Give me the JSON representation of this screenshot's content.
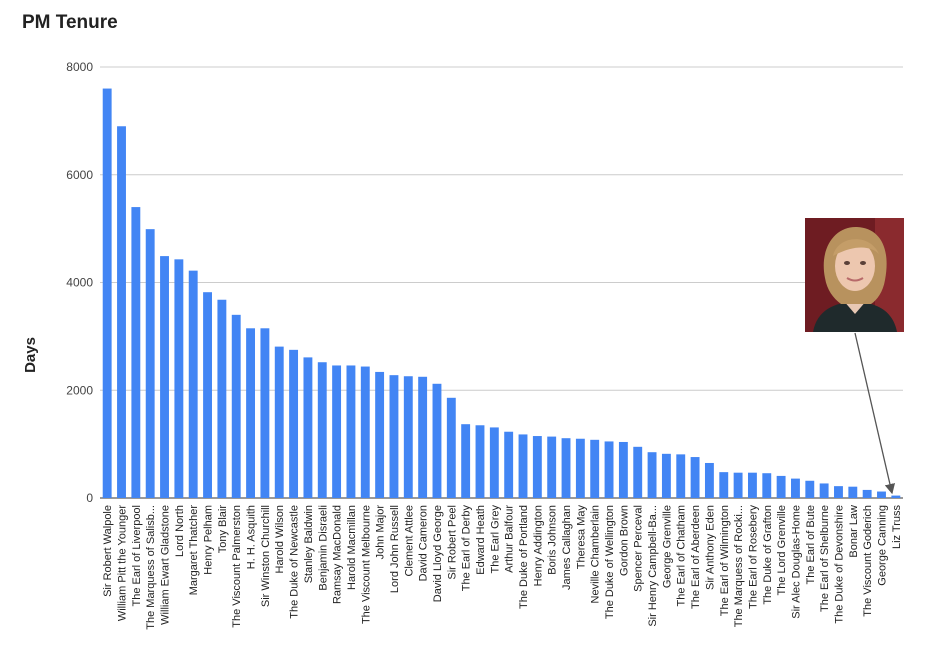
{
  "chart_data": {
    "type": "bar",
    "title": "PM Tenure",
    "xlabel": "",
    "ylabel": "Days",
    "ylim": [
      0,
      8000
    ],
    "yticks": [
      0,
      2000,
      4000,
      6000,
      8000
    ],
    "grid": true,
    "legend": "none",
    "bar_color": "#4285f4",
    "categories": [
      "Sir Robert Walpole",
      "William Pitt the Younger",
      "The Earl of Liverpool",
      "The Marquess of Salisb...",
      "William Ewart Gladstone",
      "Lord North",
      "Margaret Thatcher",
      "Henry Pelham",
      "Tony Blair",
      "The Viscount Palmerston",
      "H. H. Asquith",
      "Sir Winston Churchill",
      "Harold Wilson",
      "The Duke of Newcastle",
      "Stanley Baldwin",
      "Benjamin Disraeli",
      "Ramsay MacDonald",
      "Harold Macmillan",
      "The Viscount Melbourne",
      "John Major",
      "Lord John Russell",
      "Clement Attlee",
      "David Cameron",
      "David Lloyd George",
      "Sir Robert Peel",
      "The Earl of Derby",
      "Edward Heath",
      "The Earl Grey",
      "Arthur Balfour",
      "The Duke of Portland",
      "Henry Addington",
      "Boris Johnson",
      "James Callaghan",
      "Theresa May",
      "Neville Chamberlain",
      "The Duke of Wellington",
      "Gordon Brown",
      "Spencer Perceval",
      "Sir Henry Campbell-Ba...",
      "George Grenville",
      "The Earl of Chatham",
      "The Earl of Aberdeen",
      "Sir Anthony Eden",
      "The Earl of Wilmington",
      "The Marquess of Rocki...",
      "The Earl of Rosebery",
      "The Duke of Grafton",
      "The Lord Grenville",
      "Sir Alec Douglas-Home",
      "The Earl of Bute",
      "The Earl of Shelburne",
      "The Duke of Devonshire",
      "Bonar Law",
      "The Viscount Goderich",
      "George Canning",
      "Liz Truss"
    ],
    "values": [
      7600,
      6900,
      5400,
      4990,
      4490,
      4430,
      4220,
      3820,
      3680,
      3400,
      3150,
      3150,
      2810,
      2750,
      2610,
      2520,
      2460,
      2460,
      2440,
      2340,
      2280,
      2260,
      2250,
      2120,
      1860,
      1370,
      1350,
      1310,
      1230,
      1180,
      1150,
      1140,
      1110,
      1100,
      1080,
      1050,
      1040,
      950,
      850,
      820,
      810,
      760,
      650,
      480,
      470,
      470,
      460,
      410,
      360,
      320,
      270,
      220,
      210,
      150,
      120,
      45
    ],
    "annotations": [
      {
        "type": "image-callout",
        "target": "Liz Truss",
        "description": "portrait-photo"
      }
    ]
  }
}
